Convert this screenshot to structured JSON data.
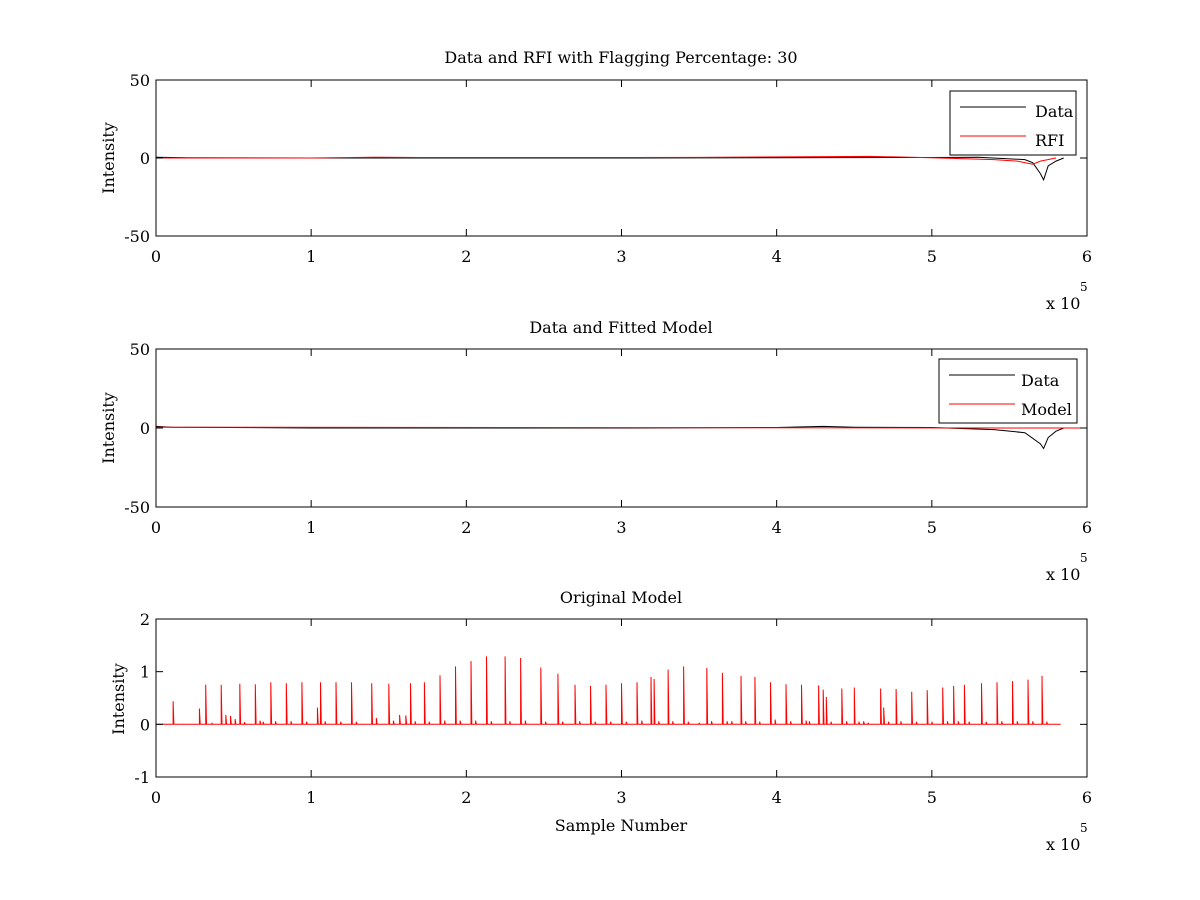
{
  "chart_data": [
    {
      "type": "line",
      "title": "Data and RFI with Flagging Percentage: 30",
      "xlabel": "",
      "ylabel": "Intensity",
      "xlim": [
        0,
        600000
      ],
      "ylim": [
        -50,
        50
      ],
      "xticks": [
        0,
        1,
        2,
        3,
        4,
        5,
        6
      ],
      "yticks": [
        -50,
        0,
        50
      ],
      "x_multiplier": "x 10",
      "x_multiplier_exp": "5",
      "legend": {
        "placement": "top-right",
        "entries": [
          "Data",
          "RFI"
        ]
      },
      "grid": false,
      "series": [
        {
          "name": "Data",
          "color": "#000000",
          "points": [
            [
              0,
              0.5
            ],
            [
              20000,
              0.2
            ],
            [
              100000,
              0
            ],
            [
              200000,
              0
            ],
            [
              300000,
              0
            ],
            [
              400000,
              0.2
            ],
            [
              500000,
              0.3
            ],
            [
              530000,
              0.5
            ],
            [
              560000,
              -1
            ],
            [
              565000,
              -3
            ],
            [
              570000,
              -10
            ],
            [
              572000,
              -14
            ],
            [
              575000,
              -5
            ],
            [
              580000,
              -2
            ],
            [
              585000,
              0
            ]
          ]
        },
        {
          "name": "RFI",
          "color": "#ff0000",
          "points": [
            [
              0,
              0
            ],
            [
              100000,
              0
            ],
            [
              140000,
              0.5
            ],
            [
              170000,
              0.3
            ],
            [
              300000,
              0.3
            ],
            [
              350000,
              0.4
            ],
            [
              420000,
              0.8
            ],
            [
              460000,
              1
            ],
            [
              500000,
              0.2
            ],
            [
              540000,
              -1
            ],
            [
              555000,
              -2
            ],
            [
              565000,
              -4
            ],
            [
              570000,
              -2
            ],
            [
              580000,
              0
            ]
          ]
        }
      ]
    },
    {
      "type": "line",
      "title": "Data and Fitted Model",
      "xlabel": "",
      "ylabel": "Intensity",
      "xlim": [
        0,
        600000
      ],
      "ylim": [
        -50,
        50
      ],
      "xticks": [
        0,
        1,
        2,
        3,
        4,
        5,
        6
      ],
      "yticks": [
        -50,
        0,
        50
      ],
      "x_multiplier": "x 10",
      "x_multiplier_exp": "5",
      "legend": {
        "placement": "top-right",
        "entries": [
          "Data",
          "Model"
        ]
      },
      "grid": false,
      "series": [
        {
          "name": "Data",
          "color": "#000000",
          "points": [
            [
              0,
              1
            ],
            [
              10000,
              0.5
            ],
            [
              100000,
              0
            ],
            [
              200000,
              0
            ],
            [
              300000,
              0
            ],
            [
              400000,
              0.3
            ],
            [
              430000,
              1
            ],
            [
              450000,
              0.5
            ],
            [
              500000,
              0.3
            ],
            [
              540000,
              -1
            ],
            [
              560000,
              -3
            ],
            [
              570000,
              -10
            ],
            [
              572000,
              -13
            ],
            [
              575000,
              -6
            ],
            [
              580000,
              -2
            ],
            [
              585000,
              0
            ]
          ]
        },
        {
          "name": "Model",
          "color": "#ff0000",
          "points": [
            [
              0,
              0.5
            ],
            [
              600000,
              0
            ]
          ]
        }
      ]
    },
    {
      "type": "line",
      "title": "Original Model",
      "xlabel": "Sample Number",
      "ylabel": "Intensity",
      "xlim": [
        0,
        600000
      ],
      "ylim": [
        -1,
        2
      ],
      "xticks": [
        0,
        1,
        2,
        3,
        4,
        5,
        6
      ],
      "yticks": [
        -1,
        0,
        1,
        2
      ],
      "x_multiplier": "x 10",
      "x_multiplier_exp": "5",
      "grid": false,
      "series": [
        {
          "name": "",
          "color": "#ff0000",
          "baseline": 0,
          "x_end": 583000,
          "spikes": [
            [
              11000,
              0.44
            ],
            [
              28000,
              0.3
            ],
            [
              32000,
              0.75
            ],
            [
              36000,
              0.03
            ],
            [
              42000,
              0.75
            ],
            [
              45000,
              0.18
            ],
            [
              48000,
              0.16
            ],
            [
              51000,
              0.1
            ],
            [
              54000,
              0.77
            ],
            [
              57000,
              0.04
            ],
            [
              64000,
              0.76
            ],
            [
              67000,
              0.07
            ],
            [
              69000,
              0.05
            ],
            [
              74000,
              0.8
            ],
            [
              77000,
              0.06
            ],
            [
              84000,
              0.78
            ],
            [
              87000,
              0.06
            ],
            [
              94000,
              0.8
            ],
            [
              97000,
              0.05
            ],
            [
              104000,
              0.32
            ],
            [
              106000,
              0.8
            ],
            [
              109000,
              0.06
            ],
            [
              116000,
              0.8
            ],
            [
              119000,
              0.05
            ],
            [
              126000,
              0.8
            ],
            [
              129000,
              0.05
            ],
            [
              139000,
              0.78
            ],
            [
              142000,
              0.12
            ],
            [
              150000,
              0.77
            ],
            [
              153000,
              0.07
            ],
            [
              157000,
              0.18
            ],
            [
              161000,
              0.17
            ],
            [
              164000,
              0.78
            ],
            [
              167000,
              0.06
            ],
            [
              173000,
              0.8
            ],
            [
              176000,
              0.05
            ],
            [
              183000,
              0.93
            ],
            [
              186000,
              0.07
            ],
            [
              193000,
              1.1
            ],
            [
              196000,
              0.07
            ],
            [
              203000,
              1.2
            ],
            [
              206000,
              0.07
            ],
            [
              213000,
              1.29
            ],
            [
              216000,
              0.06
            ],
            [
              225000,
              1.29
            ],
            [
              228000,
              0.06
            ],
            [
              235000,
              1.26
            ],
            [
              238000,
              0.07
            ],
            [
              248000,
              1.08
            ],
            [
              251000,
              0.05
            ],
            [
              259000,
              0.96
            ],
            [
              262000,
              0.05
            ],
            [
              270000,
              0.75
            ],
            [
              273000,
              0.06
            ],
            [
              280000,
              0.73
            ],
            [
              283000,
              0.05
            ],
            [
              290000,
              0.75
            ],
            [
              293000,
              0.05
            ],
            [
              300000,
              0.78
            ],
            [
              303000,
              0.05
            ],
            [
              310000,
              0.8
            ],
            [
              313000,
              0.07
            ],
            [
              319000,
              0.9
            ],
            [
              321000,
              0.86
            ],
            [
              324000,
              0.06
            ],
            [
              330000,
              1.04
            ],
            [
              333000,
              0.06
            ],
            [
              340000,
              1.1
            ],
            [
              343000,
              0.05
            ],
            [
              350000,
              0.03
            ],
            [
              355000,
              1.07
            ],
            [
              358000,
              0.06
            ],
            [
              365000,
              0.98
            ],
            [
              368000,
              0.06
            ],
            [
              371000,
              0.06
            ],
            [
              377000,
              0.92
            ],
            [
              380000,
              0.06
            ],
            [
              386000,
              0.9
            ],
            [
              389000,
              0.05
            ],
            [
              396000,
              0.8
            ],
            [
              399000,
              0.09
            ],
            [
              406000,
              0.76
            ],
            [
              409000,
              0.06
            ],
            [
              416000,
              0.75
            ],
            [
              419000,
              0.07
            ],
            [
              421000,
              0.06
            ],
            [
              427000,
              0.74
            ],
            [
              430000,
              0.66
            ],
            [
              432000,
              0.52
            ],
            [
              435000,
              0.05
            ],
            [
              442000,
              0.68
            ],
            [
              445000,
              0.06
            ],
            [
              450000,
              0.7
            ],
            [
              453000,
              0.05
            ],
            [
              456000,
              0.06
            ],
            [
              459000,
              0.03
            ],
            [
              467000,
              0.68
            ],
            [
              469000,
              0.32
            ],
            [
              472000,
              0.05
            ],
            [
              477000,
              0.67
            ],
            [
              480000,
              0.06
            ],
            [
              487000,
              0.62
            ],
            [
              490000,
              0.05
            ],
            [
              497000,
              0.65
            ],
            [
              500000,
              0.05
            ],
            [
              507000,
              0.7
            ],
            [
              510000,
              0.06
            ],
            [
              514000,
              0.73
            ],
            [
              517000,
              0.06
            ],
            [
              521000,
              0.75
            ],
            [
              524000,
              0.05
            ],
            [
              532000,
              0.78
            ],
            [
              535000,
              0.05
            ],
            [
              542000,
              0.8
            ],
            [
              545000,
              0.06
            ],
            [
              552000,
              0.82
            ],
            [
              555000,
              0.06
            ],
            [
              562000,
              0.85
            ],
            [
              565000,
              0.06
            ],
            [
              571000,
              0.92
            ],
            [
              574000,
              0.05
            ]
          ]
        }
      ]
    }
  ]
}
